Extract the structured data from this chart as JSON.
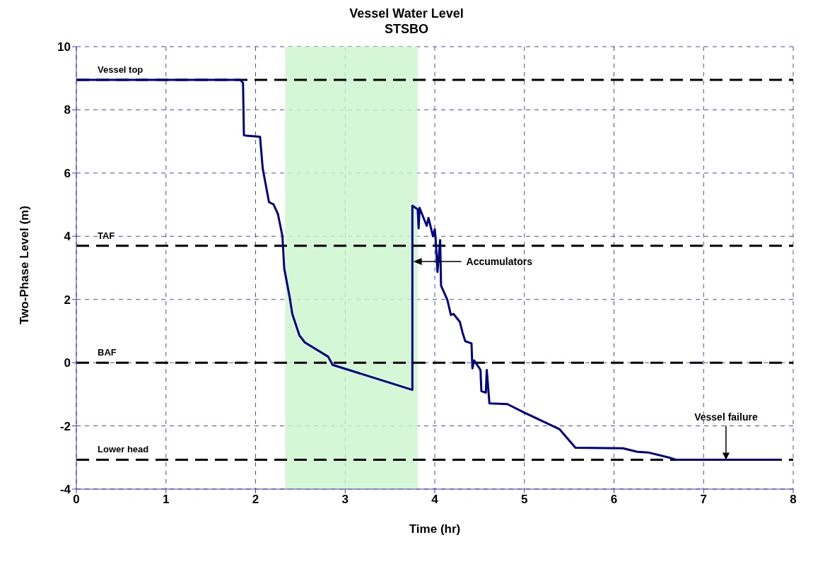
{
  "chart_data": {
    "type": "line",
    "title": "Vessel Water Level",
    "subtitle": "STSBO",
    "xlabel": "Time (hr)",
    "ylabel": "Two-Phase Level (m)",
    "xlim": [
      0,
      8
    ],
    "xticks": [
      0,
      1,
      2,
      3,
      4,
      5,
      6,
      7,
      8
    ],
    "ylim": [
      -4,
      10
    ],
    "yticks": [
      -4,
      -2,
      0,
      2,
      4,
      6,
      8,
      10
    ],
    "grid": true,
    "legend": false,
    "marker": "none",
    "series": [
      {
        "color": "#000080",
        "x": [
          0,
          1.83,
          1.86,
          1.87,
          1.9,
          2.05,
          2.08,
          2.15,
          2.2,
          2.25,
          2.3,
          2.32,
          2.38,
          2.41,
          2.49,
          2.55,
          2.81,
          2.86,
          3.75,
          3.75,
          3.81,
          3.82,
          3.83,
          3.91,
          3.93,
          3.98,
          4.0,
          4.01,
          4.03,
          4.06,
          4.07,
          4.14,
          4.18,
          4.21,
          4.28,
          4.31,
          4.34,
          4.41,
          4.42,
          4.44,
          4.51,
          4.52,
          4.57,
          4.58,
          4.61,
          4.81,
          5.0,
          5.39,
          5.57,
          6.1,
          6.26,
          6.38,
          6.61,
          6.69,
          7.85
        ],
        "values": [
          8.95,
          8.95,
          8.85,
          7.2,
          7.18,
          7.15,
          6.14,
          5.08,
          5.01,
          4.7,
          4.0,
          2.98,
          2.08,
          1.54,
          0.86,
          0.64,
          0.19,
          -0.07,
          -0.86,
          4.97,
          4.85,
          4.25,
          4.9,
          4.33,
          4.58,
          4.0,
          4.22,
          3.9,
          2.87,
          3.88,
          2.44,
          1.99,
          1.51,
          1.54,
          1.29,
          0.95,
          0.68,
          0.61,
          -0.18,
          0.07,
          -0.23,
          -0.9,
          -0.95,
          -0.23,
          -1.29,
          -1.31,
          -1.58,
          -2.1,
          -2.69,
          -2.71,
          -2.82,
          -2.84,
          -3.0,
          -3.07,
          -3.07
        ]
      }
    ],
    "ref_lines": [
      {
        "axis": "y",
        "value": 8.95,
        "label": "Vessel top",
        "color": "#000000",
        "line_style": "dashed"
      },
      {
        "axis": "y",
        "value": 3.7,
        "label": "TAF",
        "color": "#000000",
        "line_style": "dashed"
      },
      {
        "axis": "y",
        "value": 0,
        "label": "BAF",
        "color": "#000000",
        "line_style": "dashed"
      },
      {
        "axis": "y",
        "value": -3.07,
        "label": "Lower head",
        "color": "#000000",
        "line_style": "dashed"
      }
    ],
    "bands": [
      {
        "axis": "x",
        "from": 2.33,
        "to": 3.81,
        "color": "#ccf5cc"
      }
    ],
    "annotations": [
      {
        "text": "Accumulators",
        "x": 3.76,
        "y": 3.2
      },
      {
        "text": "Vessel failure",
        "x": 7.25,
        "y": -3.07
      }
    ]
  }
}
